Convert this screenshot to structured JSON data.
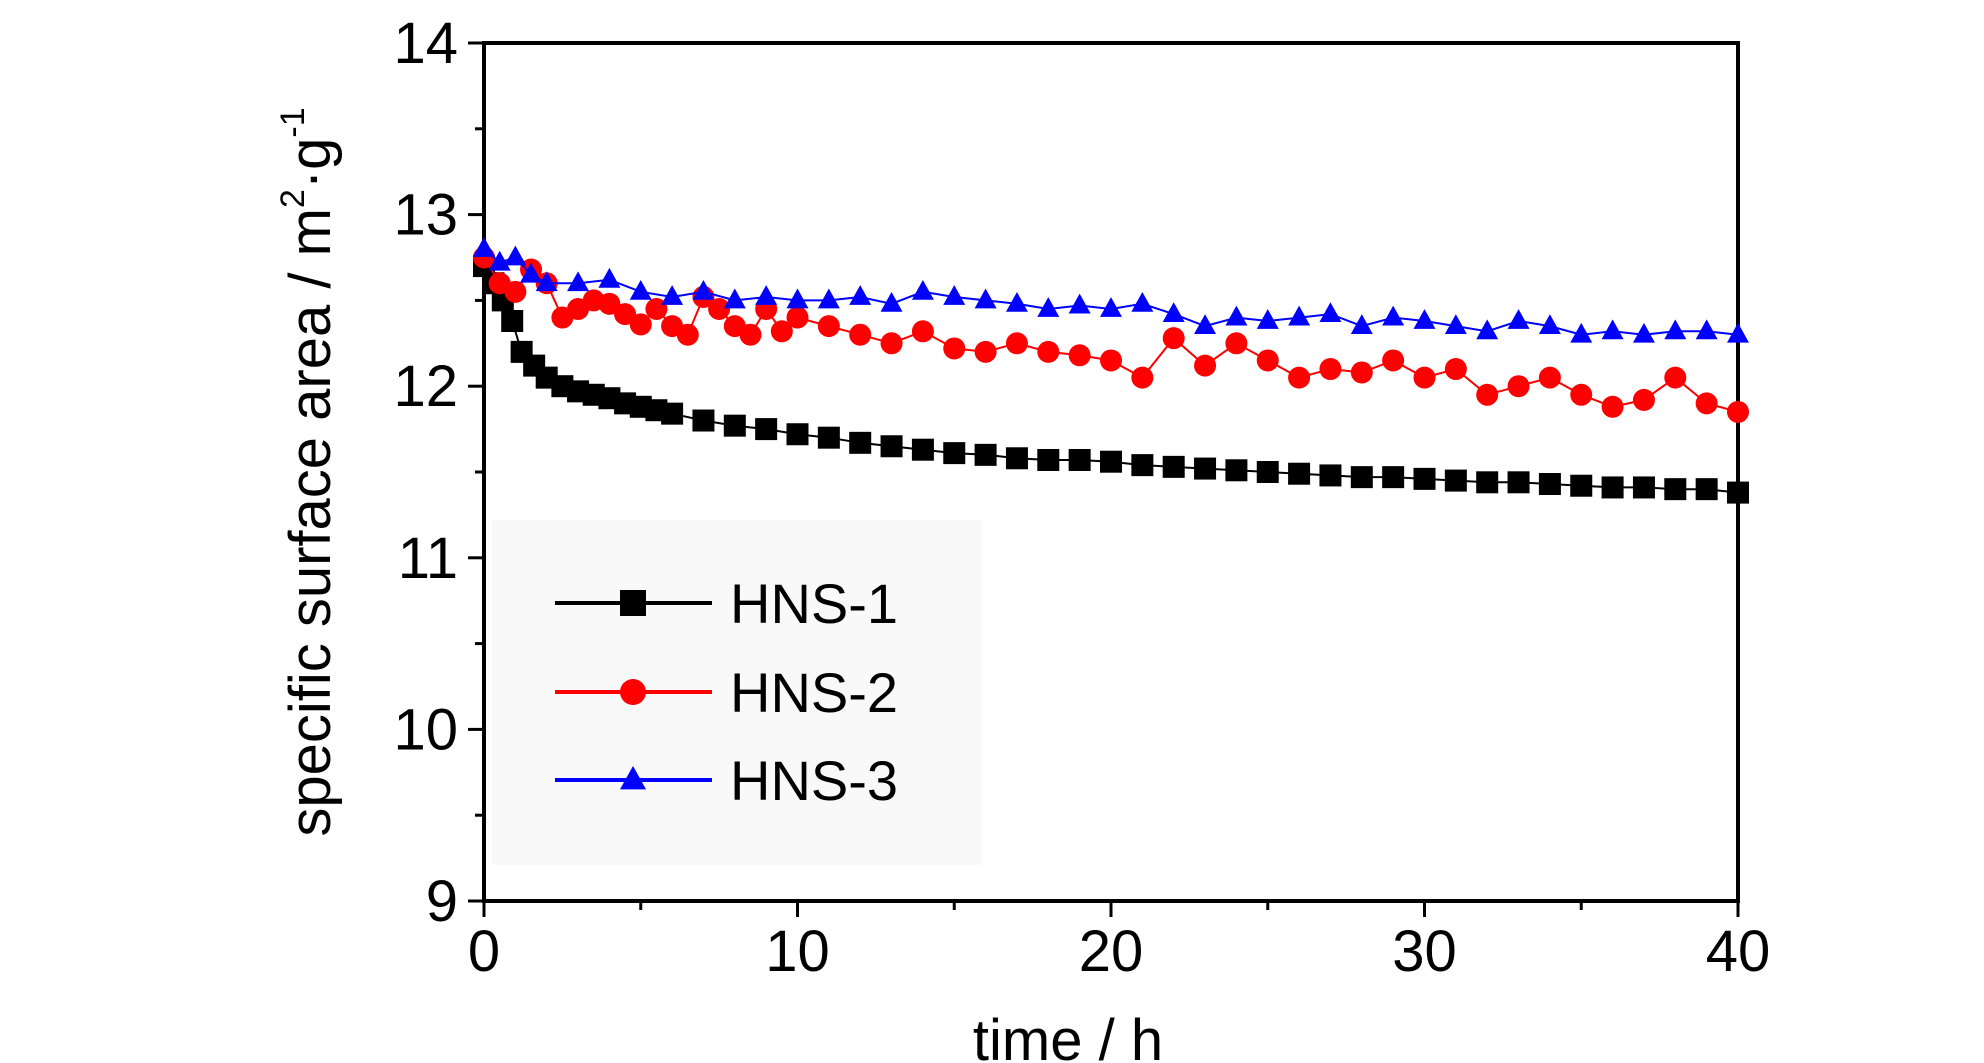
{
  "chart_data": {
    "type": "scatter",
    "xlabel": "time / h",
    "ylabel": {
      "main": "specific surface area / m",
      "sup1": "2",
      "mid": "·g",
      "sup2": "-1"
    },
    "xlim": [
      0,
      40
    ],
    "ylim": [
      9,
      14
    ],
    "xticks": [
      0,
      10,
      20,
      30,
      40
    ],
    "yticks": [
      9,
      10,
      11,
      12,
      13,
      14
    ],
    "grid": false,
    "legend_position": "bottom-left",
    "series": [
      {
        "name": "HNS-1",
        "color": "#000000",
        "marker": "square",
        "x": [
          0,
          0.3,
          0.6,
          0.9,
          1.2,
          1.6,
          2,
          2.5,
          3,
          3.5,
          4,
          4.5,
          5,
          5.5,
          6,
          7,
          8,
          9,
          10,
          11,
          12,
          13,
          14,
          15,
          16,
          17,
          18,
          19,
          20,
          21,
          22,
          23,
          24,
          25,
          26,
          27,
          28,
          29,
          30,
          31,
          32,
          33,
          34,
          35,
          36,
          37,
          38,
          39,
          40
        ],
        "y": [
          12.7,
          12.6,
          12.5,
          12.38,
          12.2,
          12.12,
          12.05,
          12.0,
          11.97,
          11.95,
          11.93,
          11.9,
          11.88,
          11.86,
          11.84,
          11.8,
          11.77,
          11.75,
          11.72,
          11.7,
          11.67,
          11.65,
          11.63,
          11.61,
          11.6,
          11.58,
          11.57,
          11.57,
          11.56,
          11.54,
          11.53,
          11.52,
          11.51,
          11.5,
          11.49,
          11.48,
          11.47,
          11.47,
          11.46,
          11.45,
          11.44,
          11.44,
          11.43,
          11.42,
          11.41,
          11.41,
          11.4,
          11.4,
          11.38
        ]
      },
      {
        "name": "HNS-2",
        "color": "#ff0000",
        "marker": "circle",
        "x": [
          0,
          0.5,
          1,
          1.5,
          2,
          2.5,
          3,
          3.5,
          4,
          4.5,
          5,
          5.5,
          6,
          6.5,
          7,
          7.5,
          8,
          8.5,
          9,
          9.5,
          10,
          11,
          12,
          13,
          14,
          15,
          16,
          17,
          18,
          19,
          20,
          21,
          22,
          23,
          24,
          25,
          26,
          27,
          28,
          29,
          30,
          31,
          32,
          33,
          34,
          35,
          36,
          37,
          38,
          39,
          40
        ],
        "y": [
          12.75,
          12.6,
          12.55,
          12.68,
          12.6,
          12.4,
          12.45,
          12.5,
          12.48,
          12.42,
          12.36,
          12.45,
          12.35,
          12.3,
          12.52,
          12.45,
          12.35,
          12.3,
          12.45,
          12.32,
          12.4,
          12.35,
          12.3,
          12.25,
          12.32,
          12.22,
          12.2,
          12.25,
          12.2,
          12.18,
          12.15,
          12.05,
          12.28,
          12.12,
          12.25,
          12.15,
          12.05,
          12.1,
          12.08,
          12.15,
          12.05,
          12.1,
          11.95,
          12.0,
          12.05,
          11.95,
          11.88,
          11.92,
          12.05,
          11.9,
          11.85
        ]
      },
      {
        "name": "HNS-3",
        "color": "#0000ff",
        "marker": "triangle",
        "x": [
          0,
          0.5,
          1,
          1.5,
          2,
          3,
          4,
          5,
          6,
          7,
          8,
          9,
          10,
          11,
          12,
          13,
          14,
          15,
          16,
          17,
          18,
          19,
          20,
          21,
          22,
          23,
          24,
          25,
          26,
          27,
          28,
          29,
          30,
          31,
          32,
          33,
          34,
          35,
          36,
          37,
          38,
          39,
          40
        ],
        "y": [
          12.8,
          12.72,
          12.75,
          12.65,
          12.6,
          12.6,
          12.62,
          12.55,
          12.52,
          12.55,
          12.5,
          12.52,
          12.5,
          12.5,
          12.52,
          12.48,
          12.55,
          12.52,
          12.5,
          12.48,
          12.45,
          12.47,
          12.45,
          12.48,
          12.42,
          12.35,
          12.4,
          12.38,
          12.4,
          12.42,
          12.35,
          12.4,
          12.38,
          12.35,
          12.32,
          12.38,
          12.35,
          12.3,
          12.32,
          12.3,
          12.32,
          12.32,
          12.3
        ]
      }
    ]
  }
}
